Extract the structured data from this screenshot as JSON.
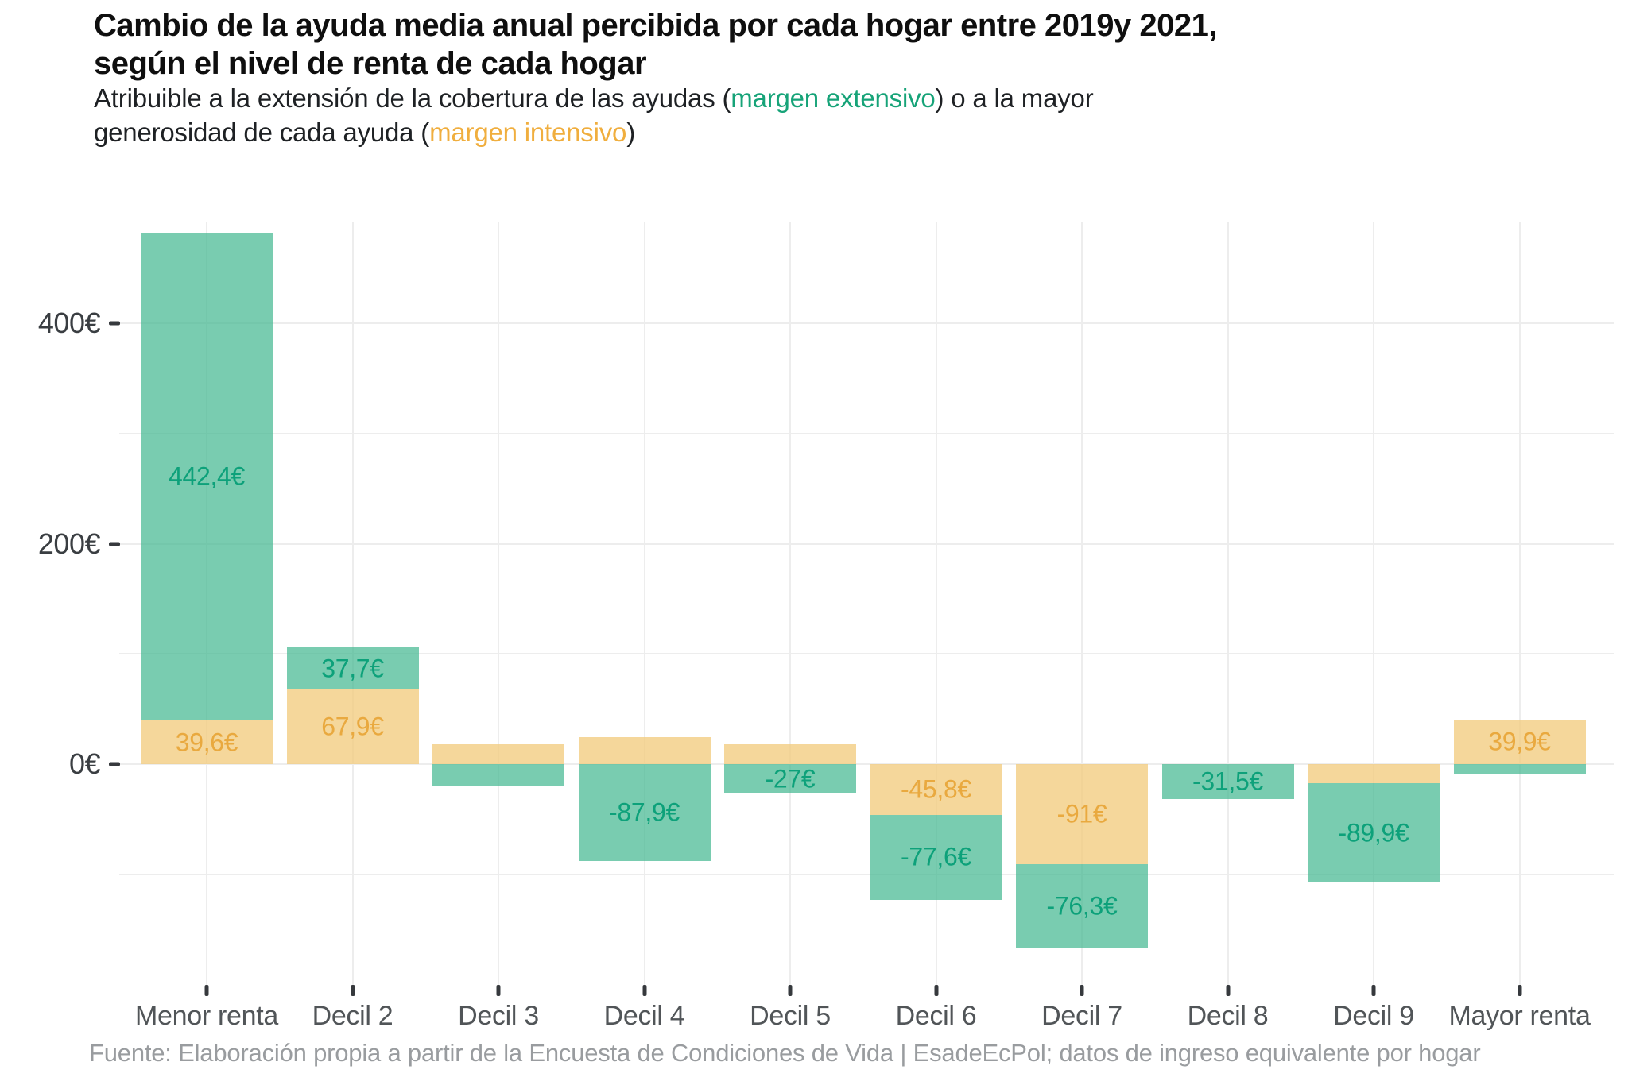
{
  "title": {
    "line1": "Cambio de la ayuda media anual percibida por cada hogar entre 2019y 2021,",
    "line2": "según el nivel de renta de cada hogar"
  },
  "subtitle": {
    "pre": "Atribuible a la extensión de la cobertura de las ayudas (",
    "extensivo": "margen extensivo",
    "mid1": ") o a la mayor",
    "mid2": "generosidad de cada ayuda (",
    "intensivo": "margen intensivo",
    "close": ")"
  },
  "footer": "Fuente: Elaboración propia a partir de la Encuesta de Condiciones de Vida | EsadeEcPol; datos de ingreso equivalente por hogar",
  "colors": {
    "extensivo_fill": "rgba(69,184,146,0.72)",
    "intensivo_fill": "rgba(242,201,121,0.75)",
    "extensivo_text": "#0da17a",
    "intensivo_text": "#e9a93f",
    "axis_text": "#3a3e42",
    "footer_text": "#999c9f",
    "gridline": "#ededed"
  },
  "chart_data": {
    "type": "bar",
    "stacked": true,
    "stack_order": [
      "intensivo",
      "extensivo"
    ],
    "categories": [
      "Menor renta",
      "Decil 2",
      "Decil 3",
      "Decil 4",
      "Decil 5",
      "Decil 6",
      "Decil 7",
      "Decil 8",
      "Decil 9",
      "Mayor renta"
    ],
    "series": [
      {
        "name": "margen intensivo",
        "key": "int",
        "values": [
          39.6,
          67.9,
          18,
          24.5,
          17.7,
          -45.8,
          -91,
          0,
          -17.6,
          39.9
        ],
        "labels": [
          "39,6€",
          "67,9€",
          "",
          "",
          "",
          "-45,8€",
          "-91€",
          "",
          "",
          "39,9€"
        ]
      },
      {
        "name": "margen extensivo",
        "key": "ext",
        "values": [
          442.4,
          37.7,
          -20,
          -87.9,
          -27,
          -77.6,
          -76.3,
          -31.5,
          -89.9,
          -9.5
        ],
        "labels": [
          "442,4€",
          "37,7€",
          "",
          "-87,9€",
          "-27€",
          "-77,6€",
          "-76,3€",
          "-31,5€",
          "-89,9€",
          ""
        ]
      }
    ],
    "y_ticks": [
      {
        "value": 0,
        "label": "0€"
      },
      {
        "value": 200,
        "label": "200€"
      },
      {
        "value": 400,
        "label": "400€"
      }
    ],
    "gridline_values": [
      -100,
      0,
      100,
      200,
      300,
      400
    ],
    "ylabel": "",
    "xlabel": "",
    "ylim": [
      -205,
      500
    ],
    "grid": true,
    "legend": "none"
  }
}
